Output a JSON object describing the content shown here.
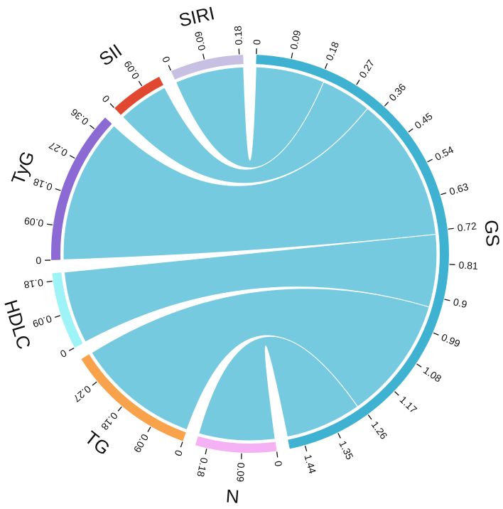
{
  "chart_data": {
    "type": "chord",
    "title": "",
    "sectors": [
      {
        "name": "GS",
        "color": "#3fb2d1",
        "max": 1.48,
        "ticks": [
          0,
          0.09,
          0.18,
          0.27,
          0.36,
          0.45,
          0.54,
          0.63,
          0.72,
          0.81,
          0.9,
          0.99,
          1.08,
          1.17,
          1.26,
          1.35,
          1.44
        ],
        "tick_labels": [
          "0",
          "0.09",
          "0.18",
          "0.27",
          "0.36",
          "0.45",
          "0.54",
          "0.63",
          "0.72",
          "0.81",
          "0.9",
          "0.99",
          "1.08",
          "1.17",
          "1.26",
          "1.35",
          "1.44"
        ]
      },
      {
        "name": "N",
        "color": "#f4b1f4",
        "max": 0.21,
        "ticks": [
          0,
          0.09,
          0.18
        ],
        "tick_labels": [
          "0",
          "0.09",
          "0.18"
        ]
      },
      {
        "name": "TG",
        "color": "#f8a24c",
        "max": 0.34,
        "ticks": [
          0,
          0.09,
          0.18,
          0.27
        ],
        "tick_labels": [
          "0",
          "0.09",
          "0.18",
          "0.27"
        ]
      },
      {
        "name": "HDLC",
        "color": "#9ef3f6",
        "max": 0.2,
        "ticks": [
          0,
          0.09,
          0.18
        ],
        "tick_labels": [
          "0",
          "0.09",
          "0.18"
        ]
      },
      {
        "name": "TyG",
        "color": "#8b6ad4",
        "max": 0.4,
        "ticks": [
          0,
          0.09,
          0.18,
          0.27,
          0.36
        ],
        "tick_labels": [
          "0",
          "0.09",
          "0.18",
          "0.27",
          "0.36"
        ]
      },
      {
        "name": "SII",
        "color": "#e04830",
        "max": 0.14,
        "ticks": [
          0,
          0.09
        ],
        "tick_labels": [
          "0",
          "0.09"
        ]
      },
      {
        "name": "SIRI",
        "color": "#c7c0e3",
        "max": 0.19,
        "ticks": [
          0,
          0.09,
          0.18
        ],
        "tick_labels": [
          "0",
          "0.09",
          "0.18"
        ]
      }
    ],
    "links": [
      {
        "source": "GS",
        "target": "SIRI",
        "value": 0.19
      },
      {
        "source": "GS",
        "target": "SII",
        "value": 0.14
      },
      {
        "source": "GS",
        "target": "TyG",
        "value": 0.4
      },
      {
        "source": "GS",
        "target": "HDLC",
        "value": 0.2
      },
      {
        "source": "GS",
        "target": "TG",
        "value": 0.34
      },
      {
        "source": "GS",
        "target": "N",
        "value": 0.21
      }
    ]
  }
}
